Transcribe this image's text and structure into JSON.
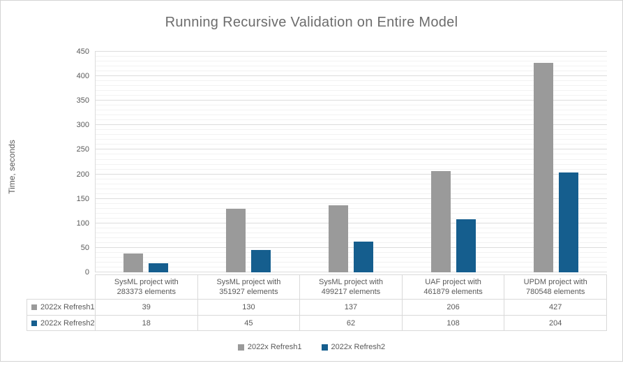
{
  "chart_data": {
    "type": "bar",
    "title": "Running Recursive Validation on Entire Model",
    "xlabel": "",
    "ylabel": "Time, seconds",
    "ylim": [
      0,
      450
    ],
    "y_major_step": 50,
    "y_minor_step": 10,
    "grid": "horizontal major+minor",
    "legend_position": "bottom",
    "has_data_table": true,
    "categories": [
      "SysML project with 283373 elements",
      "SysML project with 351927 elements",
      "SysML project with 499217 elements",
      "UAF project with 461879 elements",
      "UPDM project with 780548 elements"
    ],
    "category_lines": [
      [
        "SysML project with",
        "283373 elements"
      ],
      [
        "SysML project with",
        "351927 elements"
      ],
      [
        "SysML project with",
        "499217 elements"
      ],
      [
        "UAF project with",
        "461879 elements"
      ],
      [
        "UPDM project with",
        "780548 elements"
      ]
    ],
    "series": [
      {
        "name": "2022x Refresh1",
        "color": "#9a9a9a",
        "values": [
          39,
          130,
          137,
          206,
          427
        ]
      },
      {
        "name": "2022x Refresh2",
        "color": "#155e8e",
        "values": [
          18,
          45,
          62,
          108,
          204
        ]
      }
    ],
    "colors": {
      "title_text": "#6c6c6c",
      "axis_text": "#595959",
      "major_grid": "#dcdcdc",
      "minor_grid": "#f2f2f2",
      "table_border": "#d9d9d9",
      "frame_border": "#d3d3d3"
    }
  }
}
